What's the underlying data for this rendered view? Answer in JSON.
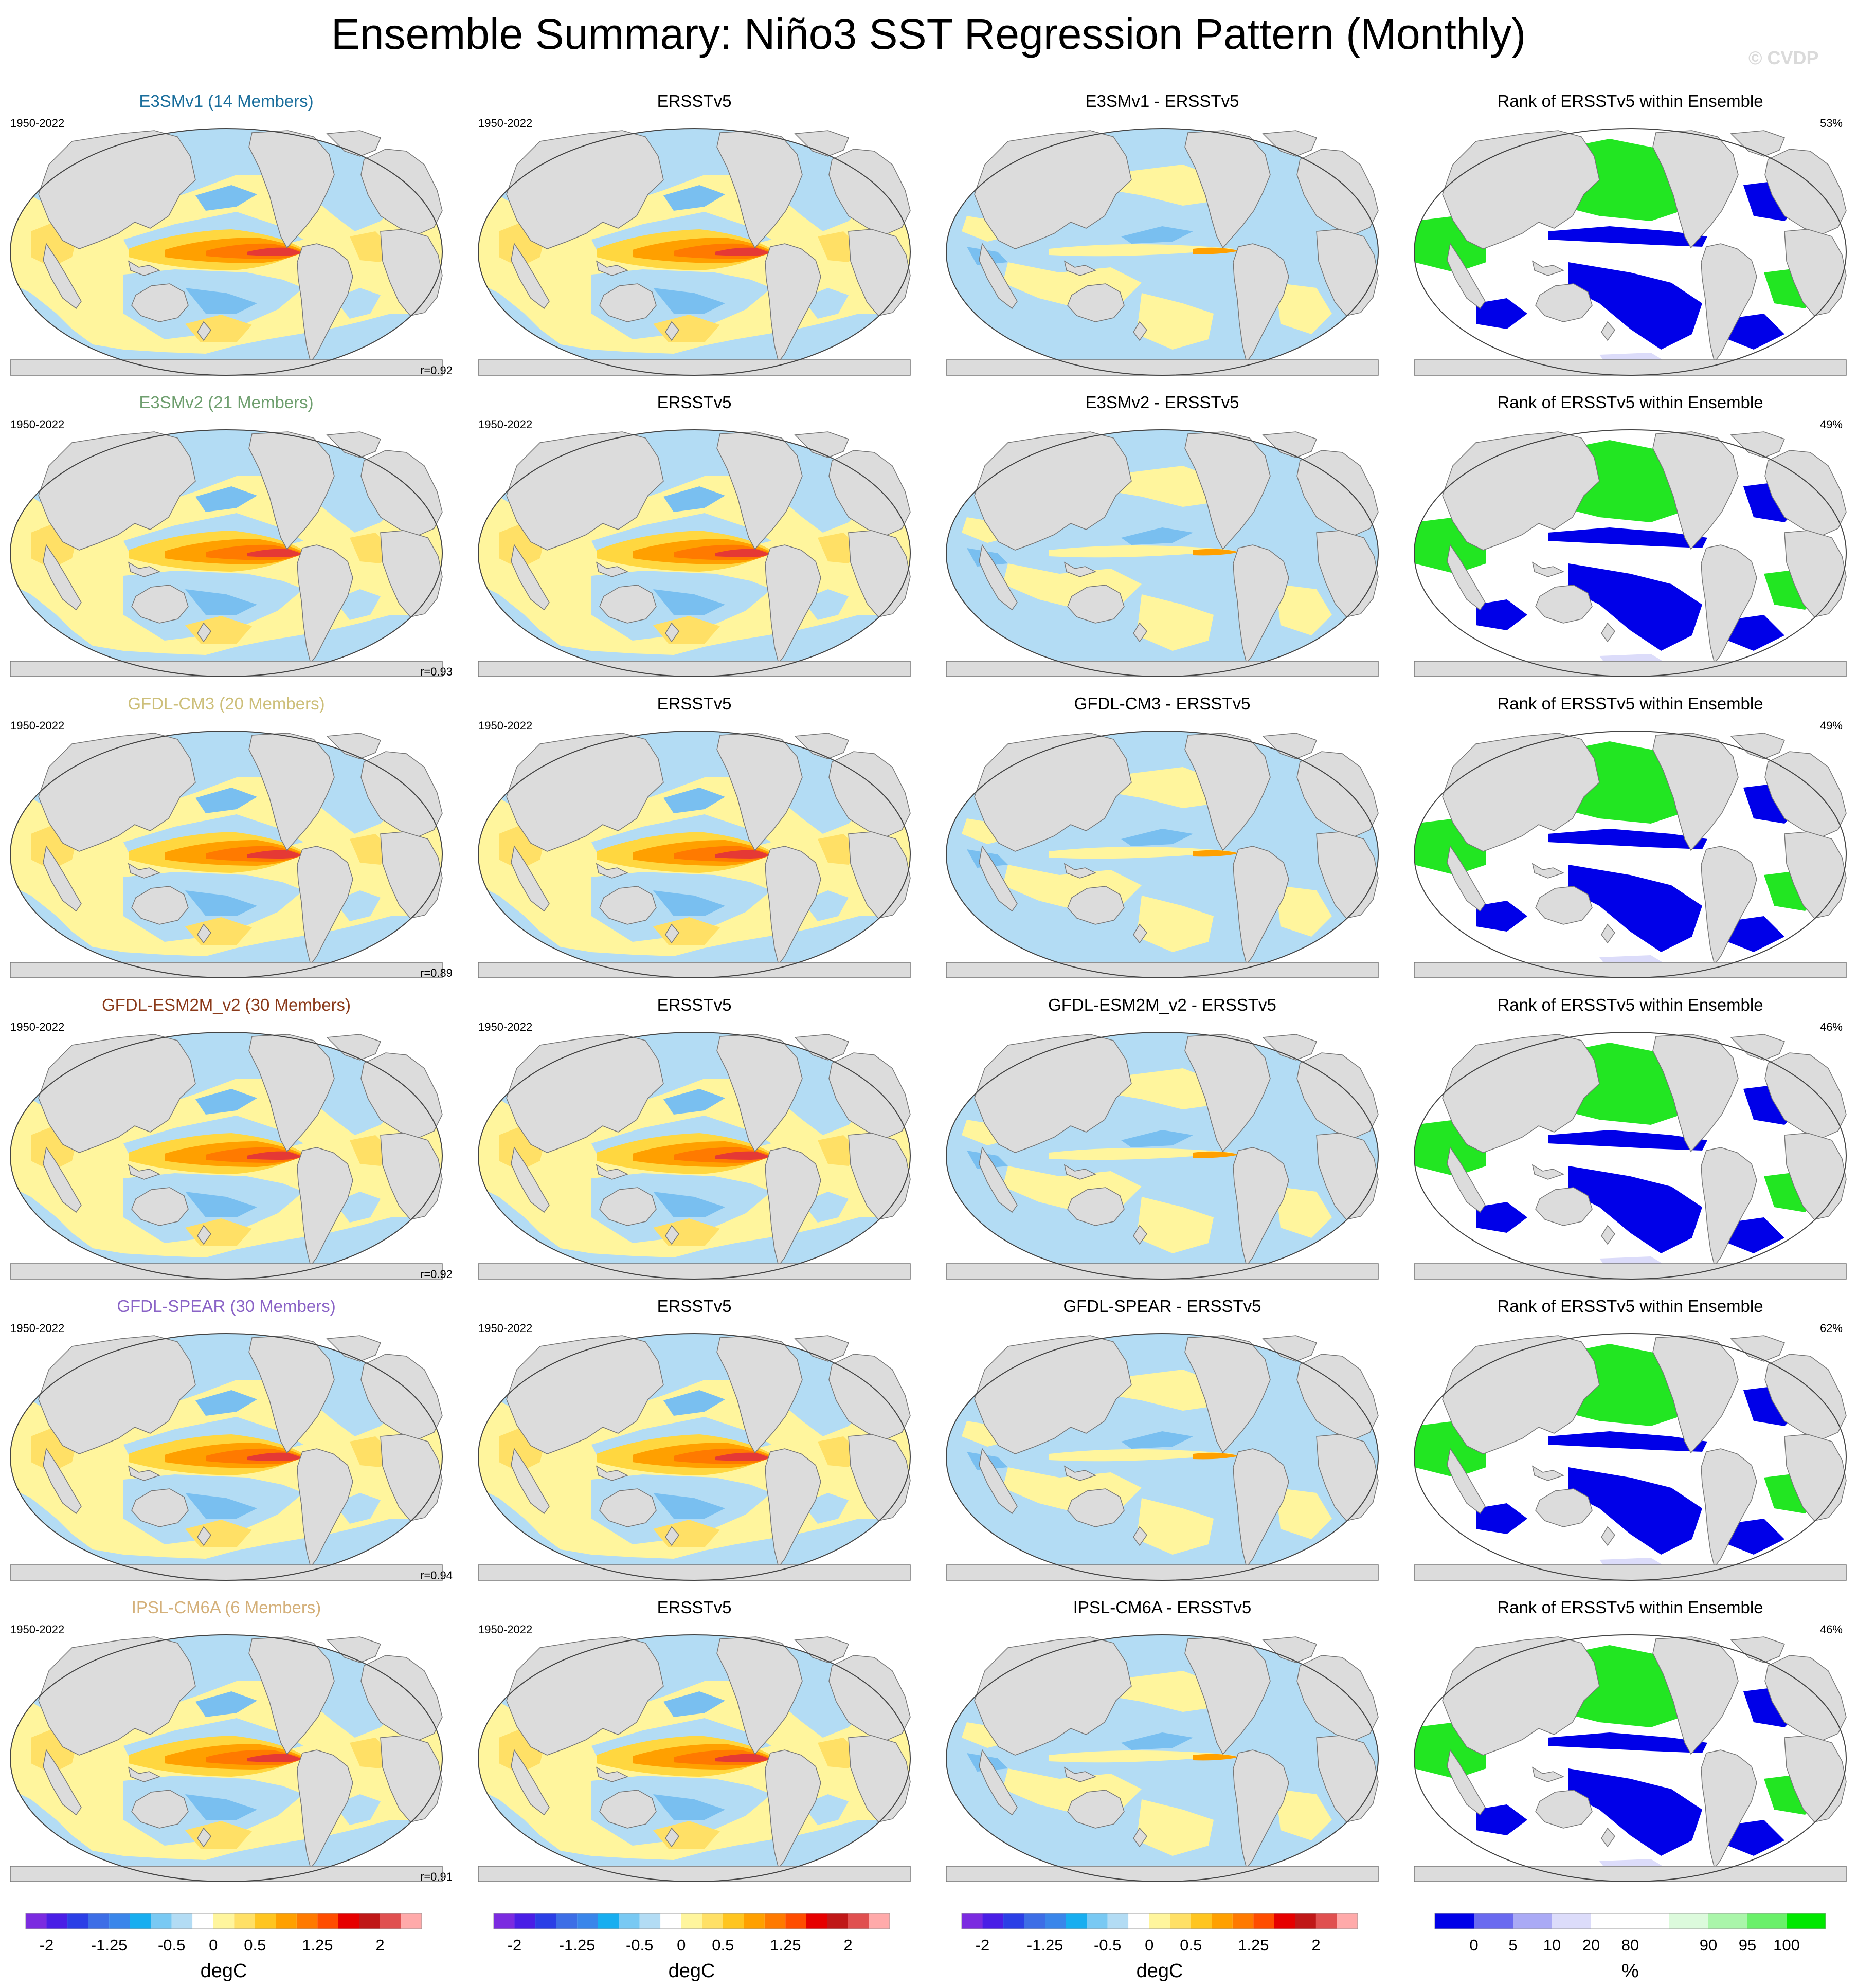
{
  "title": "Ensemble Summary: Niño3 SST Regression Pattern (Monthly)",
  "watermark": "© CVDP",
  "colors": {
    "ocean_pos_light": "#fff59d",
    "ocean_pos_mid": "#ffd740",
    "ocean_pos_strong": "#ffa000",
    "ocean_pos_max": "#e53935",
    "ocean_neg_light": "#b3dcf4",
    "ocean_neg_mid": "#79bff0",
    "land": "#dcdcdc",
    "rank_low": "#0000e8",
    "rank_high": "#22e622"
  },
  "chart_data": {
    "type": "heatmap",
    "columns": [
      "ensemble-mean",
      "observations",
      "difference",
      "rank"
    ],
    "rows": [
      {
        "model_title": "E3SMv1 (14 Members)",
        "model_color": "#1a6e9c",
        "period": "1950-2022",
        "obs_title": "ERSSTv5",
        "obs_period": "1950-2022",
        "diff_title": "E3SMv1 - ERSSTv5",
        "rank_title": "Rank of ERSSTv5 within Ensemble",
        "r": "r=0.92",
        "rank_pct": "53%"
      },
      {
        "model_title": "E3SMv2 (21 Members)",
        "model_color": "#6f9f6f",
        "period": "1950-2022",
        "obs_title": "ERSSTv5",
        "obs_period": "1950-2022",
        "diff_title": "E3SMv2 - ERSSTv5",
        "rank_title": "Rank of ERSSTv5 within Ensemble",
        "r": "r=0.93",
        "rank_pct": "49%"
      },
      {
        "model_title": "GFDL-CM3 (20 Members)",
        "model_color": "#cdbf7a",
        "period": "1950-2022",
        "obs_title": "ERSSTv5",
        "obs_period": "1950-2022",
        "diff_title": "GFDL-CM3 - ERSSTv5",
        "rank_title": "Rank of ERSSTv5 within Ensemble",
        "r": "r=0.89",
        "rank_pct": "49%"
      },
      {
        "model_title": "GFDL-ESM2M_v2 (30 Members)",
        "model_color": "#8b3a1a",
        "period": "1950-2022",
        "obs_title": "ERSSTv5",
        "obs_period": "1950-2022",
        "diff_title": "GFDL-ESM2M_v2 - ERSSTv5",
        "rank_title": "Rank of ERSSTv5 within Ensemble",
        "r": "r=0.92",
        "rank_pct": "46%"
      },
      {
        "model_title": "GFDL-SPEAR (30 Members)",
        "model_color": "#8a63c6",
        "period": "1950-2022",
        "obs_title": "ERSSTv5",
        "obs_period": "1950-2022",
        "diff_title": "GFDL-SPEAR - ERSSTv5",
        "rank_title": "Rank of ERSSTv5 within Ensemble",
        "r": "r=0.94",
        "rank_pct": "62%"
      },
      {
        "model_title": "IPSL-CM6A (6 Members)",
        "model_color": "#d4b07a",
        "period": "1950-2022",
        "obs_title": "ERSSTv5",
        "obs_period": "1950-2022",
        "diff_title": "IPSL-CM6A - ERSSTv5",
        "rank_title": "Rank of ERSSTv5 within Ensemble",
        "r": "r=0.91",
        "rank_pct": "46%"
      }
    ],
    "colorbar_sst": {
      "unit": "degC",
      "tick_labels": [
        "-2",
        "-1.25",
        "-0.5",
        "0",
        "0.5",
        "1.25",
        "2"
      ],
      "colors": [
        "#7b2be0",
        "#4a1ee6",
        "#2b3fe6",
        "#3d6ee6",
        "#3a86ea",
        "#18aef0",
        "#79c9f3",
        "#b3dcf4",
        "#ffffff",
        "#fff59d",
        "#ffe066",
        "#ffc520",
        "#ffa000",
        "#ff7a00",
        "#ff4d00",
        "#e60000",
        "#c01818",
        "#e05050",
        "#ffaaaa"
      ]
    },
    "colorbar_rank": {
      "unit": "%",
      "tick_labels": [
        "0",
        "5",
        "10",
        "20",
        "80",
        "90",
        "95",
        "100"
      ],
      "colors": [
        "#0000e8",
        "#6a6af0",
        "#aaaaf5",
        "#dcdcfa",
        "#ffffff",
        "#ffffff",
        "#dcfadc",
        "#aaf5aa",
        "#6af06a",
        "#00e800"
      ]
    }
  }
}
